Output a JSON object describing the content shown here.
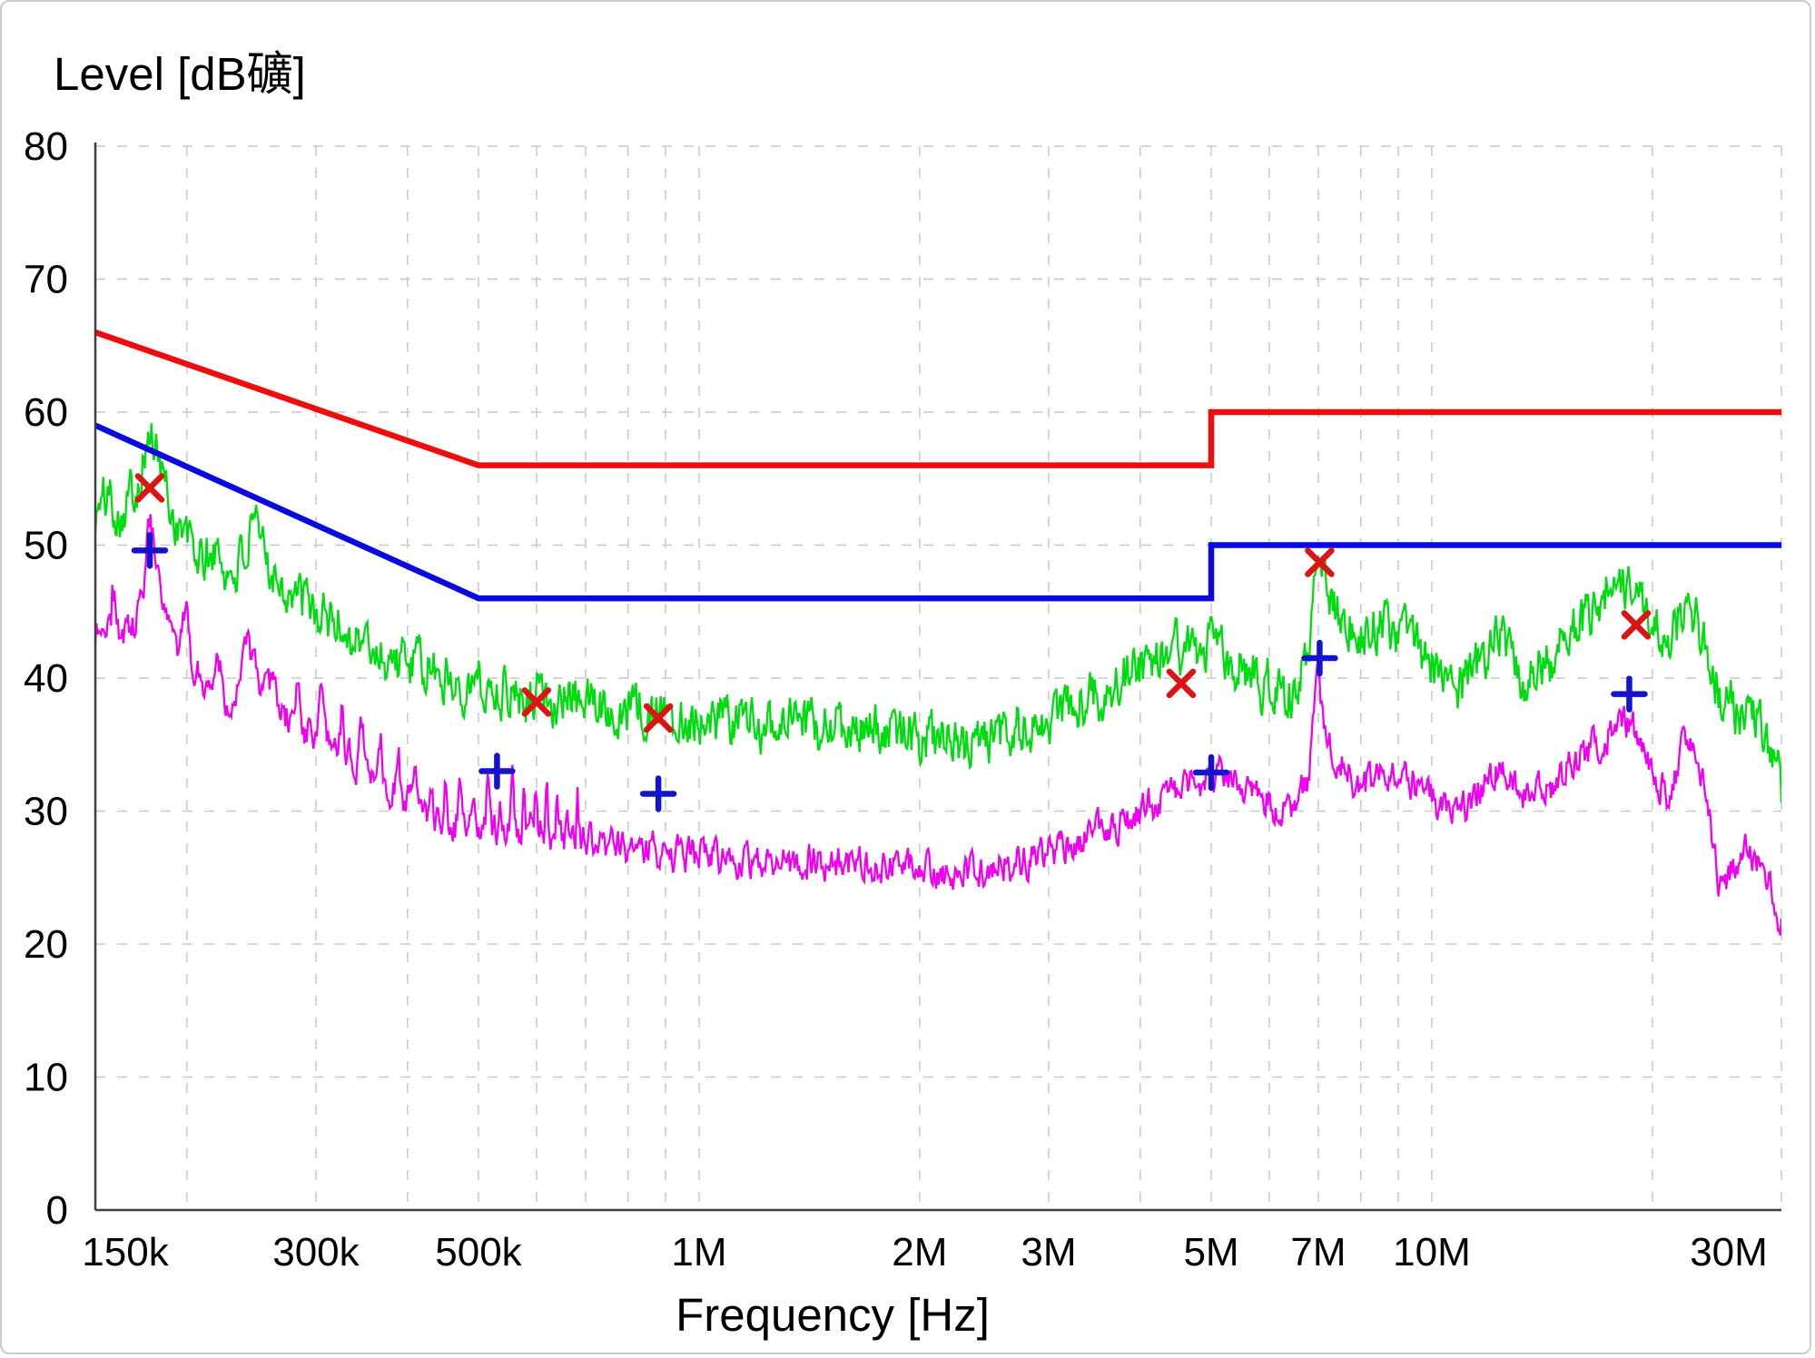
{
  "colors": {
    "background": "#ffffff",
    "axis": "#3f3f3f",
    "grid": "#c9c9c9",
    "text": "#000000",
    "red_limit": "#ee0c0c",
    "blue_limit": "#0a0ae0",
    "green_trace": "#00dc10",
    "magenta_trace": "#f000f0",
    "red_marker": "#dd1414",
    "blue_marker": "#1414cc"
  },
  "chart_data": {
    "type": "line",
    "title": "Level [dB礦]",
    "xlabel": "Frequency [Hz]",
    "x_scale": "log",
    "x_range_hz": [
      150000,
      30000000
    ],
    "y_range_db": [
      0,
      80
    ],
    "grid": "dashed",
    "legend": "none",
    "y_ticks": [
      0,
      10,
      20,
      30,
      40,
      50,
      60,
      70,
      80
    ],
    "x_ticks": [
      {
        "hz": 150000,
        "label": "150k"
      },
      {
        "hz": 300000,
        "label": "300k"
      },
      {
        "hz": 500000,
        "label": "500k"
      },
      {
        "hz": 1000000,
        "label": "1M"
      },
      {
        "hz": 2000000,
        "label": "2M"
      },
      {
        "hz": 3000000,
        "label": "3M"
      },
      {
        "hz": 5000000,
        "label": "5M"
      },
      {
        "hz": 7000000,
        "label": "7M"
      },
      {
        "hz": 10000000,
        "label": "10M"
      },
      {
        "hz": 30000000,
        "label": "30M"
      }
    ],
    "grid_lines_hz": [
      200000,
      300000,
      400000,
      500000,
      600000,
      700000,
      800000,
      900000,
      1000000,
      2000000,
      3000000,
      4000000,
      5000000,
      6000000,
      7000000,
      8000000,
      9000000,
      10000000,
      20000000,
      30000000
    ],
    "series": [
      {
        "name": "green_trace",
        "role": "measurement-trace",
        "color_key": "green_trace",
        "kind": "trace",
        "noise_db": 1.35,
        "points_hz_db": [
          [
            150000,
            52.0
          ],
          [
            156000,
            54.0
          ],
          [
            162000,
            52.5
          ],
          [
            170000,
            54.5
          ],
          [
            178000,
            58.3
          ],
          [
            184000,
            56.0
          ],
          [
            192000,
            52.0
          ],
          [
            200000,
            50.5
          ],
          [
            210000,
            48.6
          ],
          [
            218000,
            49.6
          ],
          [
            228000,
            47.6
          ],
          [
            238000,
            49.0
          ],
          [
            248000,
            50.8
          ],
          [
            258000,
            49.0
          ],
          [
            270000,
            47.2
          ],
          [
            285000,
            45.8
          ],
          [
            300000,
            44.8
          ],
          [
            320000,
            44.2
          ],
          [
            340000,
            43.0
          ],
          [
            365000,
            42.0
          ],
          [
            390000,
            41.3
          ],
          [
            420000,
            40.6
          ],
          [
            455000,
            40.0
          ],
          [
            500000,
            39.5
          ],
          [
            560000,
            39.0
          ],
          [
            640000,
            38.5
          ],
          [
            730000,
            38.1
          ],
          [
            830000,
            37.7
          ],
          [
            950000,
            37.2
          ],
          [
            1100000,
            36.8
          ],
          [
            1300000,
            36.5
          ],
          [
            1600000,
            36.2
          ],
          [
            1900000,
            35.9
          ],
          [
            2150000,
            34.9
          ],
          [
            2400000,
            35.1
          ],
          [
            2700000,
            35.9
          ],
          [
            3000000,
            36.9
          ],
          [
            3300000,
            38.0
          ],
          [
            3700000,
            39.6
          ],
          [
            4100000,
            41.2
          ],
          [
            4500000,
            42.0
          ],
          [
            4900000,
            42.2
          ],
          [
            5300000,
            41.6
          ],
          [
            5700000,
            40.4
          ],
          [
            6100000,
            38.7
          ],
          [
            6500000,
            39.0
          ],
          [
            6800000,
            42.0
          ],
          [
            7000000,
            50.3
          ],
          [
            7150000,
            47.5
          ],
          [
            7500000,
            44.8
          ],
          [
            8000000,
            43.6
          ],
          [
            8600000,
            43.9
          ],
          [
            9200000,
            43.4
          ],
          [
            9800000,
            41.5
          ],
          [
            10500000,
            39.0
          ],
          [
            11200000,
            39.8
          ],
          [
            12000000,
            42.5
          ],
          [
            12600000,
            42.8
          ],
          [
            13300000,
            40.0
          ],
          [
            14000000,
            40.5
          ],
          [
            15000000,
            42.3
          ],
          [
            16000000,
            44.3
          ],
          [
            17000000,
            46.2
          ],
          [
            18000000,
            47.6
          ],
          [
            19000000,
            47.0
          ],
          [
            20000000,
            44.0
          ],
          [
            21000000,
            42.7
          ],
          [
            22000000,
            44.8
          ],
          [
            22800000,
            45.2
          ],
          [
            23800000,
            41.5
          ],
          [
            25000000,
            38.5
          ],
          [
            26000000,
            37.2
          ],
          [
            27000000,
            38.0
          ],
          [
            28500000,
            36.0
          ],
          [
            29500000,
            33.5
          ],
          [
            30000000,
            31.5
          ]
        ]
      },
      {
        "name": "magenta_trace",
        "role": "measurement-trace",
        "color_key": "magenta_trace",
        "kind": "trace",
        "noise_db": 0.9,
        "comb": {
          "min_hz": 158000,
          "max_hz": 700000,
          "period_hz": 21000,
          "gain_db": 3.2
        },
        "points_hz_db": [
          [
            150000,
            43.4
          ],
          [
            156000,
            44.6
          ],
          [
            162000,
            43.2
          ],
          [
            170000,
            43.8
          ],
          [
            178000,
            48.6
          ],
          [
            184000,
            46.0
          ],
          [
            192000,
            42.3
          ],
          [
            200000,
            41.2
          ],
          [
            210000,
            40.0
          ],
          [
            220000,
            38.7
          ],
          [
            232000,
            38.3
          ],
          [
            245000,
            41.0
          ],
          [
            258000,
            38.3
          ],
          [
            272000,
            37.0
          ],
          [
            286000,
            36.2
          ],
          [
            300000,
            35.6
          ],
          [
            320000,
            34.4
          ],
          [
            345000,
            33.4
          ],
          [
            370000,
            32.4
          ],
          [
            400000,
            30.8
          ],
          [
            435000,
            29.6
          ],
          [
            470000,
            28.9
          ],
          [
            510000,
            28.5
          ],
          [
            560000,
            28.8
          ],
          [
            640000,
            28.1
          ],
          [
            730000,
            27.6
          ],
          [
            830000,
            27.2
          ],
          [
            950000,
            26.8
          ],
          [
            1100000,
            26.5
          ],
          [
            1300000,
            26.3
          ],
          [
            1600000,
            26.1
          ],
          [
            1900000,
            25.8
          ],
          [
            2150000,
            25.1
          ],
          [
            2400000,
            25.4
          ],
          [
            2700000,
            26.1
          ],
          [
            3000000,
            26.9
          ],
          [
            3300000,
            27.8
          ],
          [
            3700000,
            28.9
          ],
          [
            4100000,
            30.4
          ],
          [
            4500000,
            31.5
          ],
          [
            4900000,
            32.4
          ],
          [
            5200000,
            32.8
          ],
          [
            5600000,
            31.8
          ],
          [
            6000000,
            30.7
          ],
          [
            6400000,
            30.2
          ],
          [
            6800000,
            32.5
          ],
          [
            7000000,
            40.3
          ],
          [
            7150000,
            36.5
          ],
          [
            7500000,
            33.5
          ],
          [
            8000000,
            32.1
          ],
          [
            8600000,
            32.4
          ],
          [
            9200000,
            32.6
          ],
          [
            9800000,
            31.5
          ],
          [
            10500000,
            29.8
          ],
          [
            11200000,
            30.6
          ],
          [
            12000000,
            33.0
          ],
          [
            12600000,
            33.3
          ],
          [
            13300000,
            30.8
          ],
          [
            14000000,
            31.2
          ],
          [
            15000000,
            32.6
          ],
          [
            16000000,
            34.0
          ],
          [
            17000000,
            35.5
          ],
          [
            18000000,
            36.7
          ],
          [
            19000000,
            36.2
          ],
          [
            20000000,
            32.8
          ],
          [
            21000000,
            31.4
          ],
          [
            22000000,
            34.5
          ],
          [
            22800000,
            35.0
          ],
          [
            23800000,
            30.2
          ],
          [
            24800000,
            24.2
          ],
          [
            26800000,
            27.0
          ],
          [
            28000000,
            25.8
          ],
          [
            29000000,
            24.0
          ],
          [
            30000000,
            21.4
          ]
        ]
      },
      {
        "name": "blue_limit_line",
        "role": "limit-line",
        "color_key": "blue_limit",
        "kind": "limit",
        "points_hz_db": [
          [
            150000,
            59
          ],
          [
            500000,
            46
          ],
          [
            5000000,
            46
          ],
          [
            5000000,
            50
          ],
          [
            30000000,
            50
          ]
        ]
      },
      {
        "name": "red_limit_line",
        "role": "limit-line",
        "color_key": "red_limit",
        "kind": "limit",
        "points_hz_db": [
          [
            150000,
            66
          ],
          [
            500000,
            56
          ],
          [
            5000000,
            56
          ],
          [
            5000000,
            60
          ],
          [
            30000000,
            60
          ]
        ]
      }
    ],
    "markers": [
      {
        "glyph": "x",
        "color_key": "red_marker",
        "hz": 178000,
        "db": 54.3
      },
      {
        "glyph": "x",
        "color_key": "red_marker",
        "hz": 600000,
        "db": 38.2
      },
      {
        "glyph": "x",
        "color_key": "red_marker",
        "hz": 880000,
        "db": 37.0
      },
      {
        "glyph": "x",
        "color_key": "red_marker",
        "hz": 4550000,
        "db": 39.6
      },
      {
        "glyph": "x",
        "color_key": "red_marker",
        "hz": 7030000,
        "db": 48.7
      },
      {
        "glyph": "x",
        "color_key": "red_marker",
        "hz": 19000000,
        "db": 44.0
      },
      {
        "glyph": "+",
        "color_key": "blue_marker",
        "hz": 178000,
        "db": 49.6
      },
      {
        "glyph": "+",
        "color_key": "blue_marker",
        "hz": 530000,
        "db": 33.0
      },
      {
        "glyph": "+",
        "color_key": "blue_marker",
        "hz": 880000,
        "db": 31.3
      },
      {
        "glyph": "+",
        "color_key": "blue_marker",
        "hz": 5000000,
        "db": 32.9
      },
      {
        "glyph": "+",
        "color_key": "blue_marker",
        "hz": 7030000,
        "db": 41.5
      },
      {
        "glyph": "+",
        "color_key": "blue_marker",
        "hz": 18600000,
        "db": 38.8
      }
    ]
  }
}
